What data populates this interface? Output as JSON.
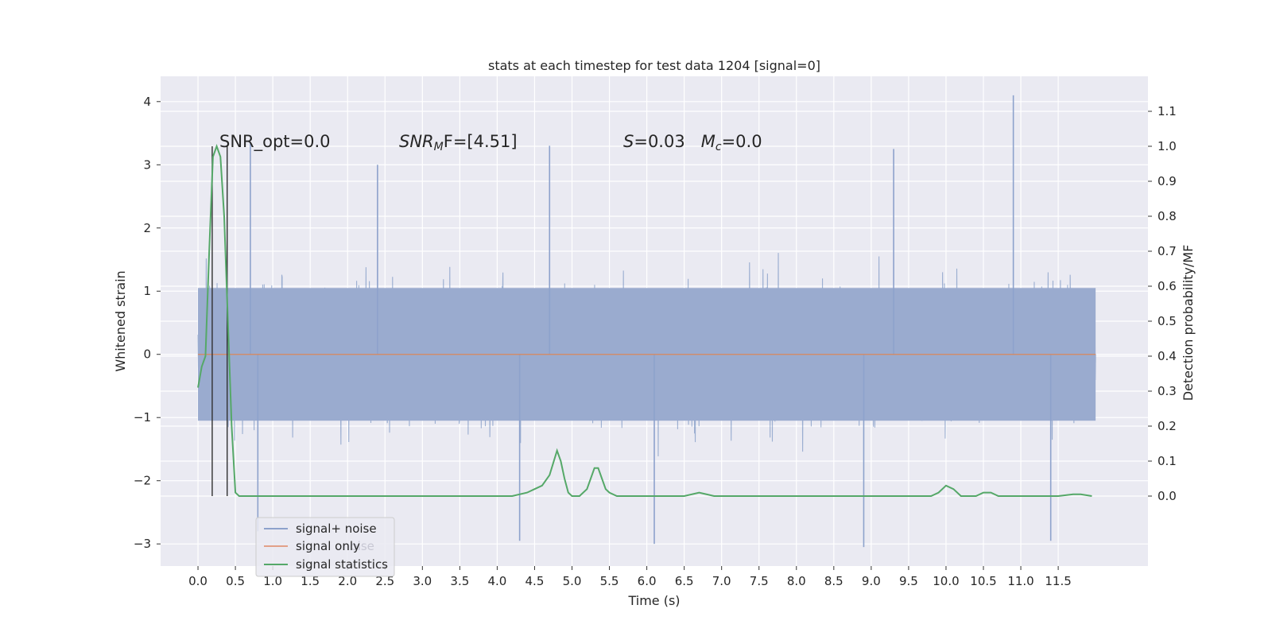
{
  "chart_data": {
    "type": "line",
    "title": "stats at each timestep for test data 1204 [signal=0]",
    "xlabel": "Time (s)",
    "ylabel": "Whitened strain",
    "y2label": "Detection probability/MF",
    "xlim": [
      -0.5,
      12.7
    ],
    "ylim": [
      -3.35,
      4.4
    ],
    "y2lim": [
      -0.2,
      1.2
    ],
    "x_ticks": [
      0.0,
      0.5,
      1.0,
      1.5,
      2.0,
      2.5,
      3.0,
      3.5,
      4.0,
      4.5,
      5.0,
      5.5,
      6.0,
      6.5,
      7.0,
      7.5,
      8.0,
      8.5,
      9.0,
      9.5,
      10.0,
      10.5,
      11.0,
      11.5
    ],
    "x_tick_labels": [
      "0.0",
      "0.5",
      "1.0",
      "1.5",
      "2.0",
      "2.5",
      "3.0",
      "3.5",
      "4.0",
      "4.5",
      "5.0",
      "5.5",
      "6.0",
      "6.5",
      "7.0",
      "7.5",
      "8.0",
      "8.5",
      "9.0",
      "9.5",
      "10.0",
      "10.5",
      "11.0",
      "11.5"
    ],
    "y_ticks": [
      -3,
      -2,
      -1,
      0,
      1,
      2,
      3,
      4
    ],
    "y_tick_labels": [
      "−3",
      "−2",
      "−1",
      "0",
      "1",
      "2",
      "3",
      "4"
    ],
    "y2_ticks": [
      0.0,
      0.1,
      0.2,
      0.3,
      0.4,
      0.5,
      0.6,
      0.7,
      0.8,
      0.9,
      1.0,
      1.1
    ],
    "y2_tick_labels": [
      "0.0",
      "0.1",
      "0.2",
      "0.3",
      "0.4",
      "0.5",
      "0.6",
      "0.7",
      "0.8",
      "0.9",
      "1.0",
      "1.1"
    ],
    "grid": true,
    "legend_position": "lower-left",
    "series": [
      {
        "name": "signal+ noise",
        "color": "#4c72b0",
        "axis": "left",
        "x_range": [
          0.0,
          12.0
        ],
        "peak_points": [
          [
            0.7,
            3.35
          ],
          [
            2.4,
            3.0
          ],
          [
            4.7,
            3.3
          ],
          [
            9.3,
            3.25
          ],
          [
            10.9,
            4.1
          ],
          [
            0.8,
            -2.8
          ],
          [
            4.3,
            -2.95
          ],
          [
            6.1,
            -3.0
          ],
          [
            8.9,
            -3.05
          ],
          [
            11.4,
            -2.95
          ]
        ]
      },
      {
        "name": "signal only",
        "color": "#dd8452",
        "axis": "left",
        "x": [
          0.0,
          12.0
        ],
        "y": [
          0.0,
          0.0
        ]
      },
      {
        "name": "signal statistics",
        "color": "#55a868",
        "axis": "right",
        "x": [
          0.0,
          0.05,
          0.1,
          0.15,
          0.2,
          0.25,
          0.3,
          0.35,
          0.4,
          0.45,
          0.5,
          0.55,
          0.6,
          1.0,
          2.0,
          3.0,
          4.0,
          4.2,
          4.4,
          4.5,
          4.6,
          4.7,
          4.8,
          4.85,
          4.9,
          4.95,
          5.0,
          5.1,
          5.2,
          5.3,
          5.35,
          5.4,
          5.45,
          5.5,
          5.6,
          5.8,
          6.0,
          6.5,
          6.7,
          6.9,
          7.0,
          8.0,
          8.5,
          9.0,
          9.5,
          9.8,
          9.9,
          10.0,
          10.1,
          10.2,
          10.3,
          10.4,
          10.5,
          10.6,
          10.7,
          11.0,
          11.5,
          11.7,
          11.8,
          11.95
        ],
        "y": [
          0.31,
          0.37,
          0.4,
          0.7,
          0.97,
          1.0,
          0.97,
          0.8,
          0.5,
          0.2,
          0.01,
          0.0,
          0.0,
          0.0,
          0.0,
          0.0,
          0.0,
          0.0,
          0.01,
          0.02,
          0.03,
          0.06,
          0.13,
          0.1,
          0.05,
          0.01,
          0.0,
          0.0,
          0.02,
          0.08,
          0.08,
          0.05,
          0.02,
          0.01,
          0.0,
          0.0,
          0.0,
          0.0,
          0.01,
          0.0,
          0.0,
          0.0,
          0.0,
          0.0,
          0.0,
          0.0,
          0.01,
          0.03,
          0.02,
          0.0,
          0.0,
          0.0,
          0.01,
          0.01,
          0.0,
          0.0,
          0.0,
          0.005,
          0.005,
          0.0
        ]
      }
    ],
    "vlines": [
      {
        "x": 0.19,
        "y2_from": 0.0,
        "y2_to": 1.0,
        "color": "#303030"
      },
      {
        "x": 0.39,
        "y2_from": 0.0,
        "y2_to": 1.0,
        "color": "#303030"
      }
    ],
    "annotations": [
      {
        "id": "snr_opt",
        "text": "SNR_opt=0.0",
        "x": 0.2,
        "y": 3.35
      },
      {
        "id": "snr_mf",
        "parts": [
          "SNR",
          "M",
          "F=[4.51]"
        ],
        "x": 2.6,
        "y": 3.35
      },
      {
        "id": "stats",
        "parts": [
          "S",
          "=0.03   ",
          "M",
          "c",
          "=0.0"
        ],
        "x": 5.6,
        "y": 3.35
      }
    ],
    "legend_ghost_text": "noise"
  }
}
